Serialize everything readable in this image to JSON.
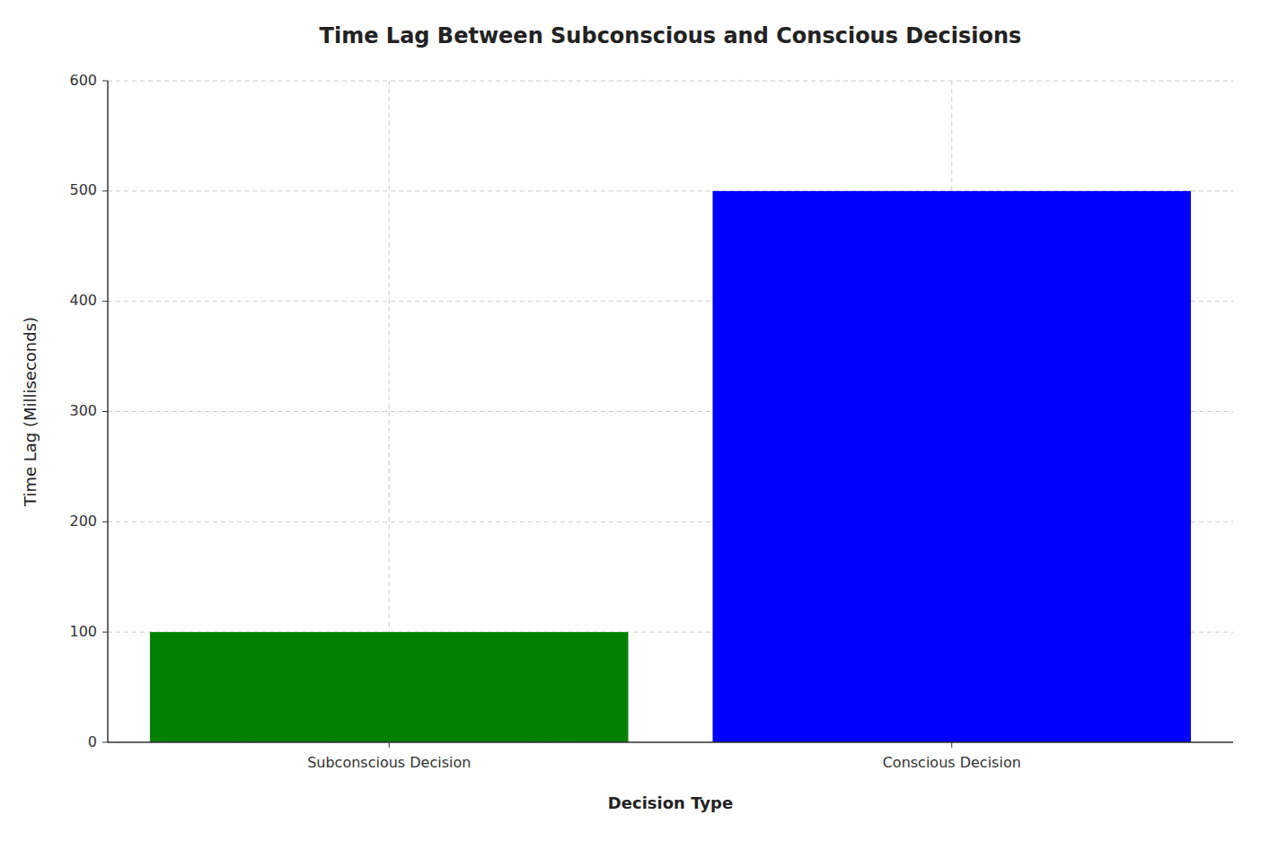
{
  "chart_data": {
    "type": "bar",
    "title": "Time Lag Between Subconscious and Conscious Decisions",
    "xlabel": "Decision Type",
    "ylabel": "Time Lag (Milliseconds)",
    "categories": [
      "Subconscious Decision",
      "Conscious Decision"
    ],
    "values": [
      100,
      500
    ],
    "colors": [
      "#008000",
      "#0000FF"
    ],
    "ylim": [
      0,
      600
    ],
    "yticks": [
      0,
      100,
      200,
      300,
      400,
      500,
      600
    ],
    "grid": true
  }
}
